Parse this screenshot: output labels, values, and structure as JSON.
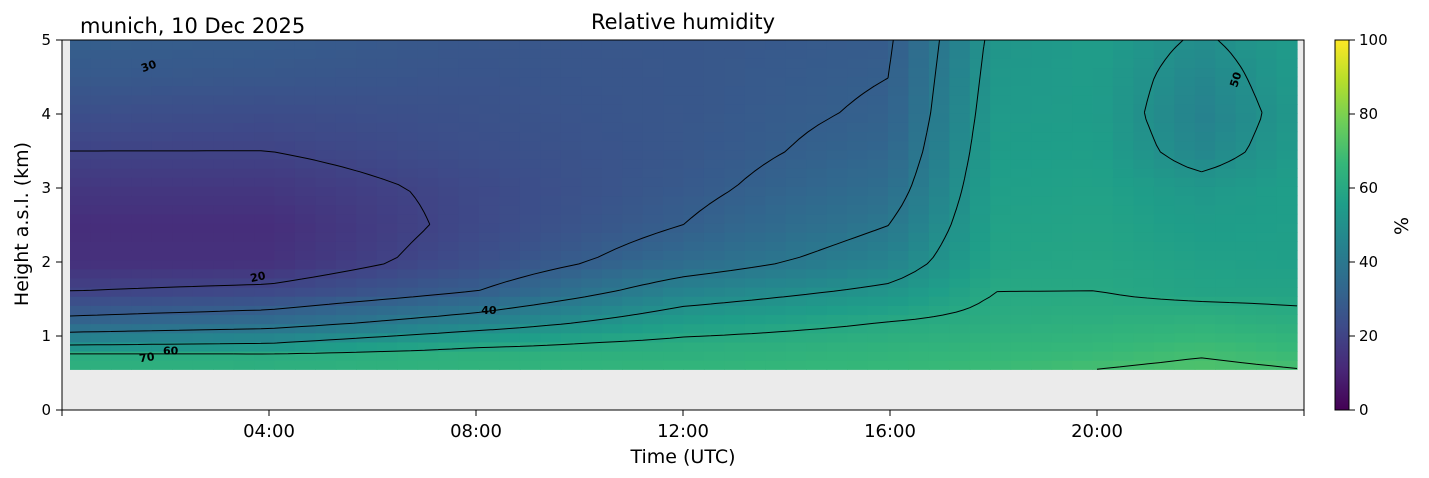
{
  "chart_data": {
    "type": "heatmap",
    "title": "Relative humidity",
    "subtitle": "munich, 10 Dec 2025",
    "xlabel": "Time (UTC)",
    "ylabel": "Height a.s.l. (km)",
    "x_tick_labels": [
      "04:00",
      "08:00",
      "12:00",
      "16:00",
      "20:00"
    ],
    "x_tick_hours": [
      4,
      8,
      12,
      16,
      20
    ],
    "xlim_hours": [
      0,
      24
    ],
    "y_ticks": [
      0,
      1,
      2,
      3,
      4,
      5
    ],
    "ylim": [
      0,
      5
    ],
    "colorbar": {
      "label": "%",
      "ticks": [
        0,
        20,
        40,
        60,
        80,
        100
      ],
      "range": [
        0,
        100
      ],
      "colormap": "viridis"
    },
    "data_bottom_km": 0.55,
    "no_data_color": "#ebebeb",
    "contour_levels": [
      20,
      30,
      40,
      50,
      60,
      70
    ],
    "contour_labels": [
      {
        "text": "30",
        "hour": 1.7,
        "km": 4.6,
        "angle": -20
      },
      {
        "text": "20",
        "hour": 3.8,
        "km": 1.75,
        "angle": -12
      },
      {
        "text": "40",
        "hour": 8.25,
        "km": 1.3,
        "angle": 0
      },
      {
        "text": "60",
        "hour": 2.1,
        "km": 0.75,
        "angle": 0
      },
      {
        "text": "70",
        "hour": 1.65,
        "km": 0.66,
        "angle": -8
      },
      {
        "text": "50",
        "hour": 22.75,
        "km": 4.45,
        "angle": -72
      }
    ],
    "rh_field": {
      "rows": [
        {
          "km": 0.55,
          "hours": [
            0,
            4,
            8,
            12,
            16,
            18,
            20,
            22,
            24
          ],
          "values": [
            62,
            62,
            64,
            66,
            67,
            68,
            70,
            72,
            70
          ]
        },
        {
          "km": 0.7,
          "hours": [
            0,
            4,
            8,
            12,
            16,
            18,
            20,
            22,
            24
          ],
          "values": [
            65,
            64,
            65,
            64,
            66,
            67,
            68,
            70,
            68
          ]
        },
        {
          "km": 0.9,
          "hours": [
            0,
            4,
            8,
            12,
            16,
            18,
            20,
            22,
            24
          ],
          "values": [
            48,
            50,
            58,
            62,
            64,
            65,
            66,
            68,
            66
          ]
        },
        {
          "km": 1.2,
          "hours": [
            0,
            4,
            8,
            12,
            16,
            18,
            20,
            22,
            24
          ],
          "values": [
            32,
            35,
            44,
            55,
            60,
            62,
            63,
            64,
            62
          ]
        },
        {
          "km": 1.6,
          "hours": [
            0,
            4,
            8,
            12,
            16,
            18,
            20,
            22,
            24
          ],
          "values": [
            20,
            22,
            30,
            45,
            52,
            60,
            60,
            58,
            58
          ]
        },
        {
          "km": 2.0,
          "hours": [
            0,
            4,
            8,
            12,
            16,
            18,
            20,
            22,
            24
          ],
          "values": [
            14,
            14,
            24,
            35,
            45,
            58,
            59,
            57,
            56
          ]
        },
        {
          "km": 2.5,
          "hours": [
            0,
            4,
            8,
            12,
            16,
            18,
            20,
            22,
            24
          ],
          "values": [
            13,
            13,
            22,
            30,
            40,
            57,
            58,
            55,
            56
          ]
        },
        {
          "km": 3.0,
          "hours": [
            0,
            4,
            8,
            12,
            16,
            18,
            20,
            22,
            24
          ],
          "values": [
            16,
            16,
            22,
            28,
            36,
            56,
            57,
            53,
            56
          ]
        },
        {
          "km": 3.5,
          "hours": [
            0,
            4,
            8,
            12,
            16,
            18,
            20,
            22,
            24
          ],
          "values": [
            20,
            20,
            24,
            27,
            33,
            55,
            56,
            46,
            55
          ]
        },
        {
          "km": 4.0,
          "hours": [
            0,
            4,
            8,
            12,
            16,
            18,
            20,
            22,
            24
          ],
          "values": [
            24,
            23,
            25,
            27,
            31,
            54,
            55,
            44,
            54
          ]
        },
        {
          "km": 4.5,
          "hours": [
            0,
            4,
            8,
            12,
            16,
            18,
            20,
            22,
            24
          ],
          "values": [
            28,
            27,
            26,
            27,
            30,
            53,
            55,
            46,
            55
          ]
        },
        {
          "km": 5.0,
          "hours": [
            0,
            4,
            8,
            12,
            16,
            18,
            20,
            22,
            24
          ],
          "values": [
            30,
            29,
            27,
            27,
            29,
            52,
            55,
            49,
            55
          ]
        }
      ]
    }
  }
}
